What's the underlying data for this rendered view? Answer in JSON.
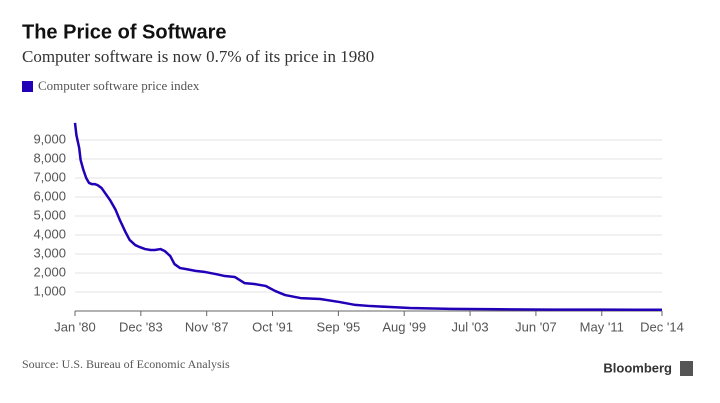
{
  "chart_data": {
    "type": "line",
    "title": "The Price of Software",
    "subtitle": "Computer software is now 0.7% of its price in 1980",
    "source": "Source: U.S. Bureau of Economic Analysis",
    "brand": "Bloomberg",
    "x": [
      "1980-01",
      "1980-02",
      "1980-04",
      "1980-05",
      "1980-07",
      "1980-09",
      "1980-11",
      "1981-01",
      "1981-03",
      "1981-05",
      "1981-08",
      "1981-10",
      "1982-02",
      "1982-06",
      "1982-09",
      "1983-01",
      "1983-04",
      "1983-08",
      "1983-11",
      "1984-03",
      "1984-07",
      "1984-10",
      "1985-02",
      "1985-05",
      "1985-09",
      "1985-12",
      "1986-04",
      "1986-08",
      "1987-03",
      "1987-10",
      "1988-05",
      "1988-12",
      "1989-07",
      "1990-02",
      "1990-09",
      "1991-05",
      "1991-12",
      "1992-07",
      "1993-06",
      "1994-08",
      "1995-10",
      "1996-09",
      "1997-08",
      "1998-10",
      "1999-12",
      "2002-05",
      "2005-04",
      "2008-04",
      "2011-04",
      "2014-12"
    ],
    "series": [
      {
        "name": "Computer software price index",
        "color": "#2200b8",
        "values": [
          9900,
          9260,
          8580,
          7950,
          7420,
          7000,
          6740,
          6680,
          6680,
          6630,
          6470,
          6260,
          5840,
          5320,
          4790,
          4160,
          3740,
          3470,
          3370,
          3260,
          3210,
          3210,
          3260,
          3160,
          2890,
          2470,
          2260,
          2210,
          2110,
          2050,
          1950,
          1840,
          1790,
          1470,
          1420,
          1320,
          1050,
          840,
          680,
          630,
          470,
          320,
          260,
          210,
          160,
          110,
          90,
          70,
          70,
          66
        ]
      }
    ],
    "xlim": [
      "1980-01",
      "2014-12"
    ],
    "xticks": [
      {
        "value": "1980-01",
        "label": "Jan '80"
      },
      {
        "value": "1983-12",
        "label": "Dec '83"
      },
      {
        "value": "1987-11",
        "label": "Nov '87"
      },
      {
        "value": "1991-10",
        "label": "Oct '91"
      },
      {
        "value": "1995-09",
        "label": "Sep '95"
      },
      {
        "value": "1999-08",
        "label": "Aug '99"
      },
      {
        "value": "2003-07",
        "label": "Jul '03"
      },
      {
        "value": "2007-06",
        "label": "Jun '07"
      },
      {
        "value": "2011-05",
        "label": "May '11"
      },
      {
        "value": "2014-12",
        "label": "Dec '14"
      }
    ],
    "ylim": [
      0,
      10000
    ],
    "yticks": [
      {
        "value": 1000,
        "label": "1,000"
      },
      {
        "value": 2000,
        "label": "2,000"
      },
      {
        "value": 3000,
        "label": "3,000"
      },
      {
        "value": 4000,
        "label": "4,000"
      },
      {
        "value": 5000,
        "label": "5,000"
      },
      {
        "value": 6000,
        "label": "6,000"
      },
      {
        "value": 7000,
        "label": "7,000"
      },
      {
        "value": 8000,
        "label": "8,000"
      },
      {
        "value": 9000,
        "label": "9,000"
      }
    ],
    "grid": true
  }
}
